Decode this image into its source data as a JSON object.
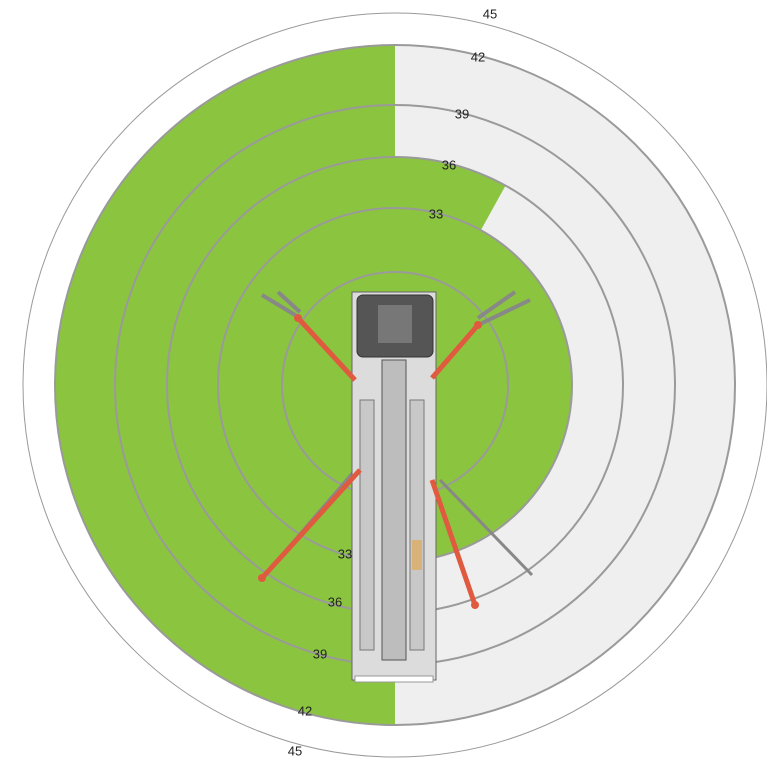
{
  "rings": {
    "labels": [
      "33",
      "36",
      "39",
      "42",
      "45"
    ]
  }
}
